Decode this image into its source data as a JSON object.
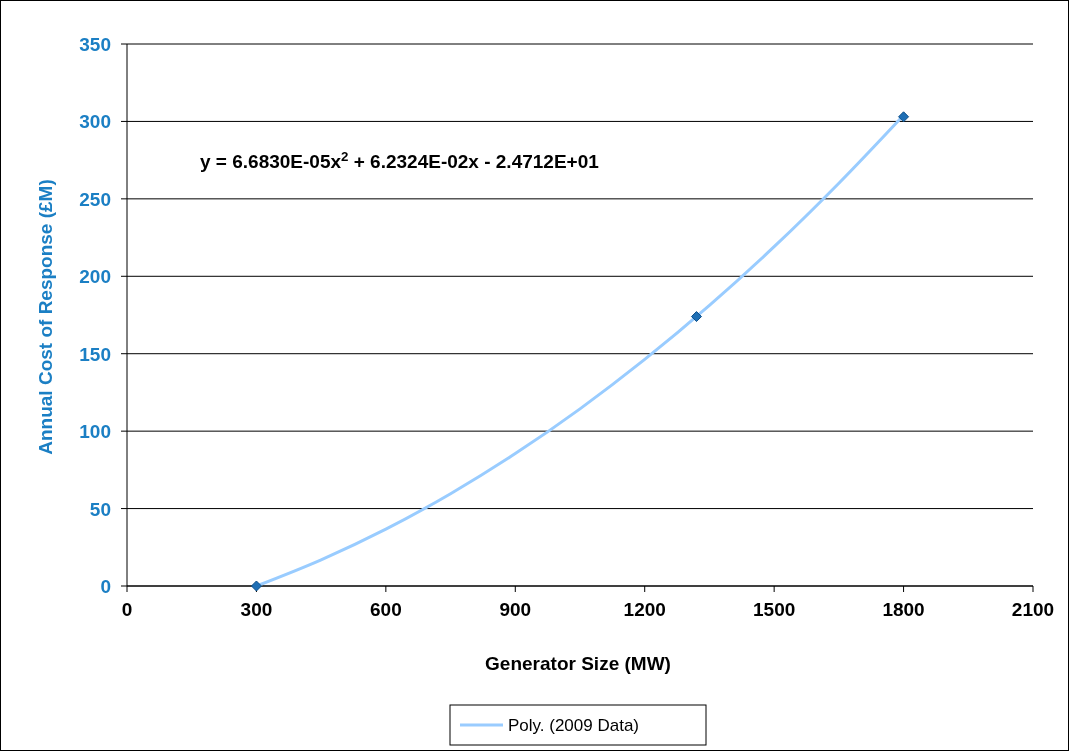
{
  "chart_data": {
    "type": "scatter",
    "xlabel": "Generator Size (MW)",
    "ylabel": "Annual Cost of Response (£M)",
    "xlim": [
      0,
      2100
    ],
    "xticks": [
      0,
      300,
      600,
      900,
      1200,
      1500,
      1800,
      2100
    ],
    "ylim": [
      0,
      350
    ],
    "yticks": [
      0,
      50,
      100,
      150,
      200,
      250,
      300,
      350
    ],
    "grid": "y",
    "legend": "bottom",
    "annotations": [
      "y = 6.6830E-05x$^{2}$ + 6.2324E-02x - 2.4712E+01"
    ],
    "series": [
      {
        "color": "#1f6fb5",
        "marker": "diamond",
        "x": [
          300,
          1320,
          1800
        ],
        "values": [
          0,
          174,
          303
        ]
      },
      {
        "type": "line",
        "name": "Poly. (2009 Data)",
        "color": "#99ccff",
        "line_style": "solid",
        "x": [
          300,
          450,
          600,
          750,
          900,
          1050,
          1200,
          1350,
          1500,
          1650,
          1800
        ],
        "values": [
          0.0,
          16.9,
          36.7,
          59.6,
          85.5,
          114.4,
          146.3,
          181.2,
          219.1,
          260.1,
          304.0
        ]
      }
    ]
  }
}
